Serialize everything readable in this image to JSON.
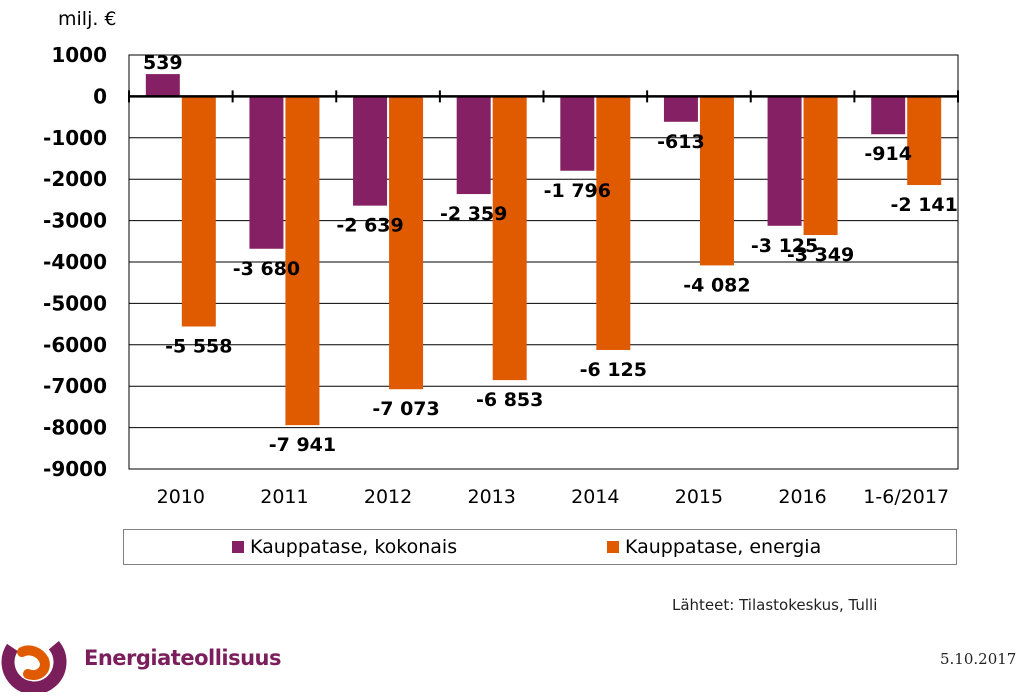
{
  "chart_data": {
    "type": "bar",
    "unit_label": "milj. €",
    "categories": [
      "2010",
      "2011",
      "2012",
      "2013",
      "2014",
      "2015",
      "2016",
      "1-6/2017"
    ],
    "series": [
      {
        "name": "Kauppatase, kokonais",
        "color": "#852064",
        "values": [
          539,
          -3680,
          -2639,
          -2359,
          -1796,
          -613,
          -3125,
          -914
        ],
        "labels": [
          "539",
          "-3 680",
          "-2 639",
          "-2 359",
          "-1 796",
          "-613",
          "-3 125",
          "-914"
        ]
      },
      {
        "name": "Kauppatase, energia",
        "color": "#E05A00",
        "values": [
          -5558,
          -7941,
          -7073,
          -6853,
          -6125,
          -4082,
          -3349,
          -2141
        ],
        "labels": [
          "-5 558",
          "-7 941",
          "-7 073",
          "-6 853",
          "-6 125",
          "-4 082",
          "-3 349",
          "-2 141"
        ]
      }
    ],
    "ylim": [
      -9000,
      1000
    ],
    "yticks": [
      1000,
      0,
      -1000,
      -2000,
      -3000,
      -4000,
      -5000,
      -6000,
      -7000,
      -8000,
      -9000
    ],
    "grid": true,
    "legend_position": "bottom"
  },
  "source_text": "Lähteet: Tilastokeskus, Tulli",
  "date_text": "5.10.2017",
  "logo_text": "Energiateollisuus",
  "colors": {
    "logo_purple": "#7a1f5c",
    "logo_orange": "#E05A00"
  }
}
